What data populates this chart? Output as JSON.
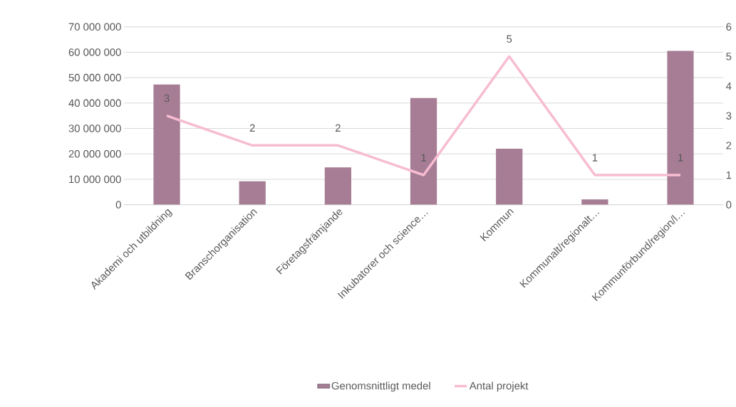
{
  "chart_data": {
    "type": "bar",
    "categories": [
      "Akademi och utbildning",
      "Branschorganisation",
      "Företagsfrämjande",
      "Inkubatorer och science…",
      "Kommun",
      "Kommunalt/regionalt…",
      "Kommunförbund/region/l…"
    ],
    "series": [
      {
        "name": "Genomsnittligt medel",
        "color": "#a67d95",
        "values": [
          47300000,
          9200000,
          14700000,
          42000000,
          22000000,
          2100000,
          60500000
        ]
      },
      {
        "name": "Antal projekt",
        "type": "line",
        "axis": "y2",
        "color": "#f7bcd2",
        "values": [
          3,
          2,
          2,
          1,
          5,
          1,
          1
        ],
        "value_labels": [
          "3",
          "2",
          "2",
          "1",
          "5",
          "1",
          "1"
        ]
      }
    ],
    "ylim": [
      0,
      70000000
    ],
    "yticks": [
      {
        "value": 0,
        "label": "0"
      },
      {
        "value": 10000000,
        "label": "10 000 000"
      },
      {
        "value": 20000000,
        "label": "20 000 000"
      },
      {
        "value": 30000000,
        "label": "30 000 000"
      },
      {
        "value": 40000000,
        "label": "40 000 000"
      },
      {
        "value": 50000000,
        "label": "50 000 000"
      },
      {
        "value": 60000000,
        "label": "60 000 000"
      },
      {
        "value": 70000000,
        "label": "70 000 000"
      }
    ],
    "y2lim": [
      0,
      6
    ],
    "y2ticks": [
      0,
      1,
      2,
      3,
      4,
      5,
      6
    ],
    "grid": "y",
    "legend": "bottom"
  }
}
